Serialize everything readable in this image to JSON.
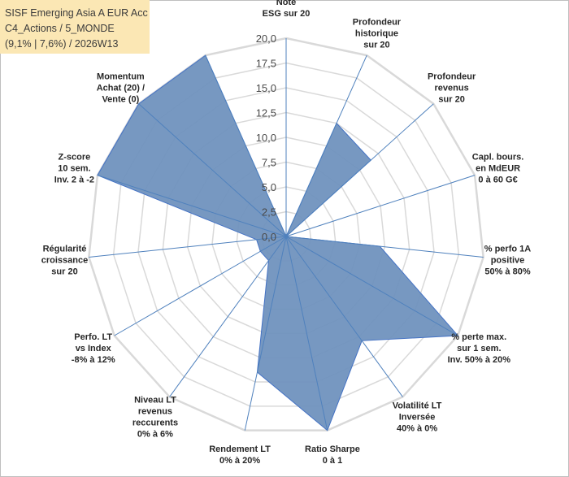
{
  "title_lines": [
    "SISF Emerging Asia A EUR Acc",
    "C4_Actions / 5_MONDE",
    "(9,1% | 7,6%) / 2026W13"
  ],
  "chart_data": {
    "type": "radar",
    "rmin": 0,
    "rmax": 20,
    "ticks": [
      "0,0",
      "2,5",
      "5,0",
      "7,5",
      "10,0",
      "12,5",
      "15,0",
      "17,5",
      "20,0"
    ],
    "tick_values": [
      0,
      2.5,
      5,
      7.5,
      10,
      12.5,
      15,
      17.5,
      20
    ],
    "axes": [
      {
        "lines": [
          "Note",
          "ESG sur 20"
        ],
        "value": 0
      },
      {
        "lines": [
          "Profondeur",
          "historique",
          "sur 20"
        ],
        "value": 12.5
      },
      {
        "lines": [
          "Profondeur",
          "revenus",
          "sur 20"
        ],
        "value": 11.5
      },
      {
        "lines": [
          "Capl. bours.",
          "en MdEUR",
          "0 à 60 G€"
        ],
        "value": 0
      },
      {
        "lines": [
          "% perfo 1A",
          "positive",
          "50% à 80%"
        ],
        "value": 9.5
      },
      {
        "lines": [
          "% perte max.",
          "sur 1 sem.",
          "Inv. 50% à 20%"
        ],
        "value": 20
      },
      {
        "lines": [
          "Volatilité LT",
          "Inversée",
          "40% à 0%"
        ],
        "value": 13
      },
      {
        "lines": [
          "Ratio Sharpe",
          "0 à 1"
        ],
        "value": 20
      },
      {
        "lines": [
          "Rendement LT",
          "0% à 20%"
        ],
        "value": 14
      },
      {
        "lines": [
          "Niveau LT",
          "revenus",
          "reccurents",
          "0% à 6%"
        ],
        "value": 3
      },
      {
        "lines": [
          "Perfo. LT",
          "vs Index",
          "-8% à 12%"
        ],
        "value": 3
      },
      {
        "lines": [
          "Régularité",
          "croissance",
          "sur 20"
        ],
        "value": 3
      },
      {
        "lines": [
          "Z-score",
          "10 sem.",
          "Inv. 2 à -2"
        ],
        "value": 20
      },
      {
        "lines": [
          "Momentum",
          "Achat (20) /",
          "Vente (0)"
        ],
        "value": 20
      },
      {
        "lines": [],
        "value": 20
      }
    ],
    "label_anchor": [
      [
        "middle",
        0,
        -1
      ],
      [
        "middle",
        0,
        0
      ],
      [
        "middle",
        0,
        0
      ],
      [
        "middle",
        0,
        0
      ],
      [
        "middle",
        0,
        0
      ],
      [
        "middle",
        0,
        0
      ],
      [
        "middle",
        0,
        0
      ],
      [
        "middle",
        0,
        0
      ],
      [
        "middle",
        0,
        0
      ],
      [
        "middle",
        0,
        0
      ],
      [
        "middle",
        0,
        0
      ],
      [
        "middle",
        0,
        0
      ],
      [
        "middle",
        0,
        0
      ],
      [
        "middle",
        0,
        0
      ],
      [
        "middle",
        0,
        0
      ]
    ],
    "colors": {
      "fill": "#7092be",
      "stroke": "#4472c4",
      "grid": "#d9d9d9",
      "spoke": "#4f81bd"
    }
  }
}
